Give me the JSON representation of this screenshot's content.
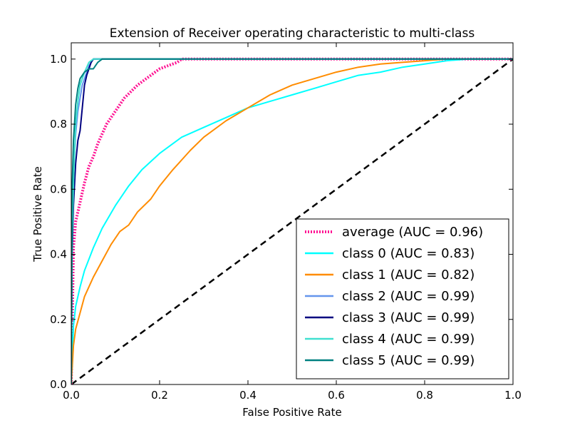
{
  "chart_data": {
    "type": "line",
    "title": "Extension of Receiver operating characteristic to multi-class",
    "xlabel": "False Positive Rate",
    "ylabel": "True Positive Rate",
    "xlim": [
      0.0,
      1.0
    ],
    "ylim": [
      0.0,
      1.05
    ],
    "xticks": [
      0.0,
      0.2,
      0.4,
      0.6,
      0.8,
      1.0
    ],
    "xtick_labels": [
      "0.0",
      "0.2",
      "0.4",
      "0.6",
      "0.8",
      "1.0"
    ],
    "yticks": [
      0.0,
      0.2,
      0.4,
      0.6,
      0.8,
      1.0
    ],
    "ytick_labels": [
      "0.0",
      "0.2",
      "0.4",
      "0.6",
      "0.8",
      "1.0"
    ],
    "grid": false,
    "legend_position": "lower-right",
    "reference_line": {
      "x": [
        0,
        1
      ],
      "y": [
        0,
        1
      ],
      "color": "#000000",
      "style": "dashed"
    },
    "series": [
      {
        "name": "average (AUC = 0.96)",
        "color": "#ff1493",
        "style": "dotted",
        "x": [
          0,
          0.005,
          0.01,
          0.02,
          0.03,
          0.04,
          0.05,
          0.06,
          0.08,
          0.1,
          0.12,
          0.15,
          0.18,
          0.2,
          0.22,
          0.24,
          0.25,
          1.0
        ],
        "y": [
          0,
          0.42,
          0.5,
          0.56,
          0.62,
          0.67,
          0.7,
          0.74,
          0.8,
          0.84,
          0.88,
          0.92,
          0.95,
          0.97,
          0.98,
          0.99,
          1.0,
          1.0
        ]
      },
      {
        "name": "class 0 (AUC = 0.83)",
        "color": "#00ffff",
        "style": "solid",
        "x": [
          0,
          0.005,
          0.01,
          0.02,
          0.03,
          0.05,
          0.07,
          0.1,
          0.13,
          0.16,
          0.2,
          0.25,
          0.3,
          0.35,
          0.4,
          0.45,
          0.5,
          0.55,
          0.6,
          0.65,
          0.7,
          0.75,
          0.8,
          0.85,
          0.9,
          0.95,
          1.0
        ],
        "y": [
          0,
          0.18,
          0.24,
          0.3,
          0.35,
          0.42,
          0.48,
          0.55,
          0.61,
          0.66,
          0.71,
          0.76,
          0.79,
          0.82,
          0.85,
          0.87,
          0.89,
          0.91,
          0.93,
          0.95,
          0.96,
          0.975,
          0.985,
          0.995,
          1.0,
          1.0,
          1.0
        ]
      },
      {
        "name": "class 1 (AUC = 0.82)",
        "color": "#ff8c00",
        "style": "solid",
        "x": [
          0,
          0.005,
          0.01,
          0.02,
          0.03,
          0.05,
          0.07,
          0.09,
          0.11,
          0.13,
          0.15,
          0.18,
          0.2,
          0.23,
          0.27,
          0.3,
          0.35,
          0.4,
          0.45,
          0.5,
          0.55,
          0.6,
          0.65,
          0.7,
          0.75,
          0.8,
          0.85,
          0.9,
          0.95,
          1.0
        ],
        "y": [
          0,
          0.12,
          0.17,
          0.22,
          0.27,
          0.33,
          0.38,
          0.43,
          0.47,
          0.49,
          0.53,
          0.57,
          0.61,
          0.66,
          0.72,
          0.76,
          0.81,
          0.85,
          0.89,
          0.92,
          0.94,
          0.96,
          0.975,
          0.985,
          0.99,
          0.995,
          1.0,
          1.0,
          1.0,
          1.0
        ]
      },
      {
        "name": "class 2 (AUC = 0.99)",
        "color": "#6495ed",
        "style": "solid",
        "x": [
          0,
          0.002,
          0.005,
          0.01,
          0.015,
          0.02,
          0.025,
          0.03,
          0.035,
          0.04,
          0.045,
          0.05,
          0.06,
          1.0
        ],
        "y": [
          0,
          0.5,
          0.65,
          0.77,
          0.84,
          0.88,
          0.92,
          0.94,
          0.96,
          0.98,
          0.99,
          1.0,
          1.0,
          1.0
        ]
      },
      {
        "name": "class 3 (AUC = 0.99)",
        "color": "#000080",
        "style": "solid",
        "x": [
          0,
          0.002,
          0.005,
          0.01,
          0.015,
          0.02,
          0.025,
          0.03,
          0.035,
          0.04,
          0.045,
          0.05,
          0.055,
          1.0
        ],
        "y": [
          0,
          0.4,
          0.55,
          0.68,
          0.75,
          0.78,
          0.85,
          0.92,
          0.95,
          0.97,
          0.99,
          1.0,
          1.0,
          1.0
        ]
      },
      {
        "name": "class 4 (AUC = 0.99)",
        "color": "#40e0d0",
        "style": "solid",
        "x": [
          0,
          0.002,
          0.005,
          0.01,
          0.015,
          0.02,
          0.03,
          0.04,
          0.05,
          1.0
        ],
        "y": [
          0,
          0.45,
          0.62,
          0.8,
          0.87,
          0.92,
          0.96,
          0.99,
          1.0,
          1.0
        ]
      },
      {
        "name": "class 5 (AUC = 0.99)",
        "color": "#008080",
        "style": "solid",
        "x": [
          0,
          0.002,
          0.005,
          0.01,
          0.015,
          0.02,
          0.03,
          0.04,
          0.05,
          0.055,
          0.06,
          0.065,
          0.07,
          1.0
        ],
        "y": [
          0,
          0.6,
          0.75,
          0.86,
          0.91,
          0.94,
          0.96,
          0.97,
          0.97,
          0.98,
          0.99,
          0.995,
          1.0,
          1.0
        ]
      }
    ]
  }
}
